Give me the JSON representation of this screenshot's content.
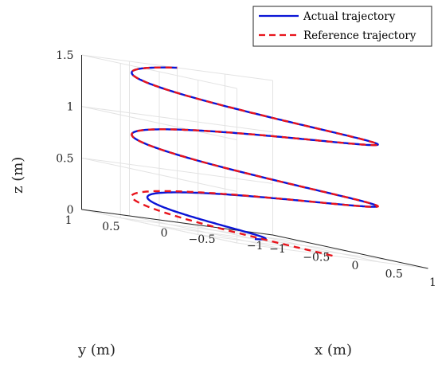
{
  "chart_data": {
    "type": "line",
    "projection": "3d",
    "grid": true,
    "legend_position": "top-right",
    "xlabel": "x (m)",
    "ylabel": "y (m)",
    "zlabel": "z (m)",
    "xlim": [
      -1,
      1
    ],
    "ylim": [
      -1,
      1
    ],
    "zlim": [
      0,
      1.5
    ],
    "xticks": [
      "−1",
      "−0.5",
      "0",
      "0.5",
      "1"
    ],
    "yticks": [
      "−1",
      "−0.5",
      "0",
      "0.5",
      "1"
    ],
    "zticks": [
      "0",
      "0.5",
      "1",
      "1.5"
    ],
    "series": [
      {
        "name": "Actual trajectory",
        "color": "#0a14d6",
        "style": "solid",
        "description": "converging spiral from (0,0,0) onto helix of radius 1 rising to z=1.5",
        "params": {
          "radius": 1,
          "turns": 2.5,
          "z_start": 0,
          "z_end": 1.5
        }
      },
      {
        "name": "Reference trajectory",
        "color": "#e8141c",
        "style": "dashed",
        "description": "helix x=cos, y=sin, radius 1, z from 0 to 1.5 over 2.5 turns",
        "params": {
          "radius": 1,
          "turns": 2.5,
          "z_start": 0,
          "z_end": 1.5
        }
      }
    ]
  }
}
